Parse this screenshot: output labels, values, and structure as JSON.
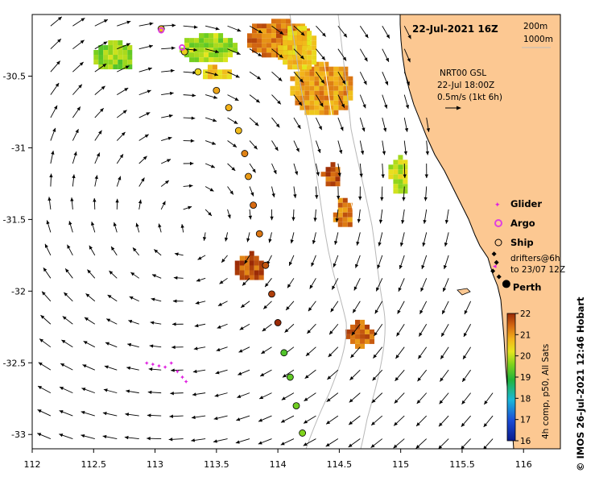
{
  "title": "22-Jul-2021 16Z",
  "isobath_legend": [
    "200m",
    "1000m"
  ],
  "current_legend": {
    "line1": "NRT00 GSL",
    "line2": "22-Jul 18:00Z",
    "line3": "0.5m/s (1kt 6h)"
  },
  "marker_legend": {
    "glider": "Glider",
    "argo": "Argo",
    "ship": "Ship",
    "drifters_line1": "drifters@6h",
    "drifters_line2": "to 23/07 12Z"
  },
  "city_label": "Perth",
  "colorbar": {
    "label": "4h comp, p50, All Sats",
    "ticks": [
      "22",
      "21",
      "20",
      "19",
      "18",
      "17",
      "16"
    ],
    "min": 16,
    "max": 22
  },
  "credit": "© IMOS 26-Jul-2021 12:46 Hobart",
  "axes": {
    "x_ticks": [
      "112",
      "112.5",
      "113",
      "113.5",
      "114",
      "114.5",
      "115",
      "115.5",
      "116"
    ],
    "y_ticks": [
      "-30.5",
      "-31",
      "-31.5",
      "-32",
      "-32.5",
      "-33"
    ],
    "lon_range": [
      112,
      116.3
    ],
    "lat_range": [
      -33.1,
      -30.07
    ]
  },
  "colors": {
    "land": "#fcc892",
    "argo": "#e040e0",
    "glider": "#e020e0",
    "drifter": "#000000"
  },
  "ship_track": [
    {
      "lon": 113.05,
      "lat": -30.17,
      "temp": 20.6
    },
    {
      "lon": 113.24,
      "lat": -30.33,
      "temp": 20.5
    },
    {
      "lon": 113.35,
      "lat": -30.47,
      "temp": 20.4
    },
    {
      "lon": 113.5,
      "lat": -30.6,
      "temp": 20.9
    },
    {
      "lon": 113.6,
      "lat": -30.72,
      "temp": 20.8
    },
    {
      "lon": 113.68,
      "lat": -30.88,
      "temp": 20.7
    },
    {
      "lon": 113.73,
      "lat": -31.04,
      "temp": 21.2
    },
    {
      "lon": 113.76,
      "lat": -31.2,
      "temp": 21.0
    },
    {
      "lon": 113.8,
      "lat": -31.4,
      "temp": 21.4
    },
    {
      "lon": 113.85,
      "lat": -31.6,
      "temp": 21.3
    },
    {
      "lon": 113.9,
      "lat": -31.82,
      "temp": 21.6
    },
    {
      "lon": 113.95,
      "lat": -32.02,
      "temp": 21.8
    },
    {
      "lon": 114.0,
      "lat": -32.22,
      "temp": 22.0
    },
    {
      "lon": 114.05,
      "lat": -32.43,
      "temp": 19.3
    },
    {
      "lon": 114.1,
      "lat": -32.6,
      "temp": 19.4
    },
    {
      "lon": 114.15,
      "lat": -32.8,
      "temp": 19.5
    },
    {
      "lon": 114.2,
      "lat": -32.99,
      "temp": 19.6
    }
  ],
  "sst_patches": [
    {
      "lon": 113.2,
      "lat": -30.2,
      "w": 0.45,
      "h": 0.18,
      "temp": 19.8
    },
    {
      "lon": 113.35,
      "lat": -30.42,
      "w": 0.25,
      "h": 0.1,
      "temp": 20.6
    },
    {
      "lon": 113.75,
      "lat": -30.1,
      "w": 0.5,
      "h": 0.25,
      "temp": 21.3
    },
    {
      "lon": 114.1,
      "lat": -30.4,
      "w": 0.5,
      "h": 0.35,
      "temp": 21.0
    },
    {
      "lon": 114.0,
      "lat": -30.15,
      "w": 0.3,
      "h": 0.3,
      "temp": 20.6
    },
    {
      "lon": 114.35,
      "lat": -31.1,
      "w": 0.15,
      "h": 0.15,
      "temp": 21.5
    },
    {
      "lon": 114.45,
      "lat": -31.35,
      "w": 0.14,
      "h": 0.2,
      "temp": 21.3
    },
    {
      "lon": 113.65,
      "lat": -31.72,
      "w": 0.22,
      "h": 0.2,
      "temp": 21.6
    },
    {
      "lon": 114.55,
      "lat": -32.2,
      "w": 0.2,
      "h": 0.18,
      "temp": 21.4
    },
    {
      "lon": 114.9,
      "lat": -31.05,
      "w": 0.15,
      "h": 0.25,
      "temp": 20.0
    },
    {
      "lon": 112.5,
      "lat": -30.25,
      "w": 0.3,
      "h": 0.2,
      "temp": 19.7
    }
  ],
  "glider_points": [
    {
      "lon": 112.93,
      "lat": -32.5
    },
    {
      "lon": 112.98,
      "lat": -32.51
    },
    {
      "lon": 113.03,
      "lat": -32.52
    },
    {
      "lon": 113.08,
      "lat": -32.53
    },
    {
      "lon": 113.13,
      "lat": -32.5
    },
    {
      "lon": 113.18,
      "lat": -32.56
    },
    {
      "lon": 113.22,
      "lat": -32.6
    },
    {
      "lon": 113.25,
      "lat": -32.63
    }
  ],
  "argo_points": [
    {
      "lon": 113.05,
      "lat": -30.18
    },
    {
      "lon": 113.22,
      "lat": -30.3
    }
  ],
  "drifter_points": [
    {
      "lon": 115.76,
      "lat": -31.74
    },
    {
      "lon": 115.78,
      "lat": -31.8
    },
    {
      "lon": 115.75,
      "lat": -31.86
    },
    {
      "lon": 115.8,
      "lat": -31.9
    }
  ],
  "perth": {
    "lon": 115.86,
    "lat": -31.95
  }
}
